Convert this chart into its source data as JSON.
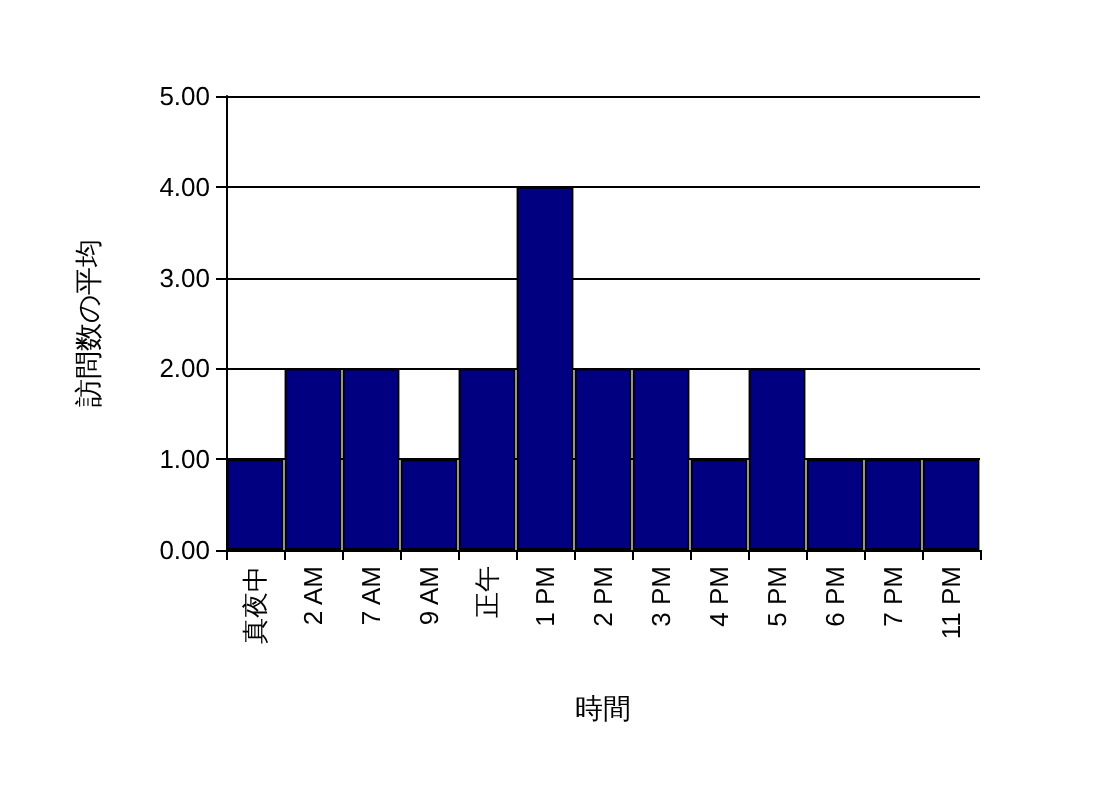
{
  "chart_data": {
    "type": "bar",
    "xlabel": "時間",
    "ylabel": "訪問数の平均",
    "categories": [
      "真夜中",
      "2 AM",
      "7 AM",
      "9 AM",
      "正午",
      "1 PM",
      "2 PM",
      "3 PM",
      "4 PM",
      "5 PM",
      "6 PM",
      "7 PM",
      "11 PM"
    ],
    "values": [
      1,
      2,
      2,
      1,
      2,
      4,
      2,
      2,
      1,
      2,
      1,
      1,
      1
    ],
    "color": "#000080",
    "ylim": [
      0,
      5
    ],
    "yticks": [
      {
        "value": 0,
        "label": "0.00"
      },
      {
        "value": 1,
        "label": "1.00"
      },
      {
        "value": 2,
        "label": "2.00"
      },
      {
        "value": 3,
        "label": "3.00"
      },
      {
        "value": 4,
        "label": "4.00"
      },
      {
        "value": 5,
        "label": "5.00"
      }
    ],
    "grid": "y"
  }
}
